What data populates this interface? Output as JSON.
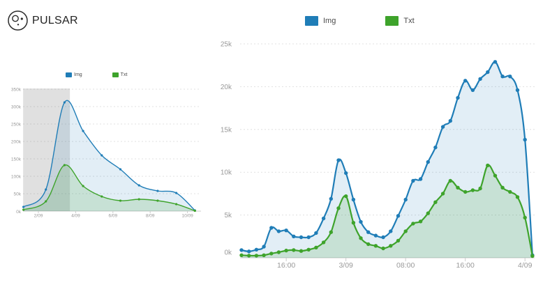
{
  "app": {
    "logo_text": "PULSAR"
  },
  "legend": {
    "img_label": "Img",
    "txt_label": "Txt"
  },
  "colors": {
    "img": "#1f7db7",
    "txt": "#3ea32b",
    "img_fill": "rgba(31,125,183,0.13)",
    "txt_fill": "rgba(62,163,43,0.16)",
    "selection": "rgba(140,140,140,0.27)",
    "grid": "#e0e0e0",
    "axis_line": "#cccccc",
    "axis_label": "#999999"
  },
  "chart_data": [
    {
      "id": "overview",
      "type": "area",
      "role": "range-overview-with-brush",
      "x_unit": "day of September",
      "x": [
        1.2,
        2.4,
        3.4,
        4.4,
        5.4,
        6.4,
        7.4,
        8.4,
        9.4,
        10.4
      ],
      "series": [
        {
          "name": "Img",
          "color": "#1f7db7",
          "fill": "rgba(31,125,183,0.13)",
          "values_k": [
            12,
            62,
            312,
            230,
            160,
            120,
            74,
            58,
            52,
            2
          ]
        },
        {
          "name": "Txt",
          "color": "#3ea32b",
          "fill": "rgba(62,163,43,0.16)",
          "values_k": [
            4,
            28,
            132,
            72,
            42,
            30,
            34,
            30,
            20,
            1
          ]
        }
      ],
      "x_ticks": [
        {
          "pos": 2,
          "label": "2/09"
        },
        {
          "pos": 4,
          "label": "4/09"
        },
        {
          "pos": 6,
          "label": "6/09"
        },
        {
          "pos": 8,
          "label": "8/09"
        },
        {
          "pos": 10,
          "label": "10/09"
        }
      ],
      "y_ticks": [
        {
          "pos": 0,
          "label": "0k"
        },
        {
          "pos": 50,
          "label": "50k"
        },
        {
          "pos": 100,
          "label": "100k"
        },
        {
          "pos": 150,
          "label": "150k"
        },
        {
          "pos": 200,
          "label": "200k"
        },
        {
          "pos": 250,
          "label": "250k"
        },
        {
          "pos": 300,
          "label": "300k"
        },
        {
          "pos": 350,
          "label": "350k"
        }
      ],
      "ylim_k": [
        0,
        350
      ],
      "grid": "dashed-horizontal",
      "selection": {
        "from": 1.18,
        "to": 3.69
      },
      "legend_position": "top-center"
    },
    {
      "id": "detail",
      "type": "area",
      "role": "zoomed-detail-of-selection",
      "x_unit": "hour index (≈hourly samples, 2/09 ~10:00 → 4/09 ~01:00)",
      "x_start": 0,
      "x_step": 1,
      "series": [
        {
          "name": "Img",
          "color": "#1f7db7",
          "fill": "rgba(31,125,183,0.13)",
          "values_k": [
            0.9,
            0.75,
            0.95,
            1.3,
            3.5,
            3.1,
            3.2,
            2.5,
            2.4,
            2.4,
            2.9,
            4.6,
            6.9,
            11.4,
            9.9,
            6.8,
            4.2,
            3.0,
            2.6,
            2.4,
            3.1,
            4.9,
            6.8,
            9.0,
            9.2,
            11.2,
            12.9,
            15.3,
            16.0,
            18.7,
            20.7,
            19.6,
            20.9,
            21.7,
            22.9,
            21.2,
            21.2,
            19.6,
            13.8,
            0.3
          ]
        },
        {
          "name": "Txt",
          "color": "#3ea32b",
          "fill": "rgba(62,163,43,0.16)",
          "values_k": [
            0.3,
            0.25,
            0.25,
            0.3,
            0.5,
            0.65,
            0.85,
            0.9,
            0.8,
            0.95,
            1.2,
            1.8,
            3.0,
            5.8,
            7.2,
            4.1,
            2.3,
            1.6,
            1.4,
            1.1,
            1.4,
            2.0,
            3.1,
            4.0,
            4.25,
            5.2,
            6.5,
            7.5,
            9.0,
            8.2,
            7.7,
            7.9,
            8.1,
            10.8,
            9.6,
            8.2,
            7.7,
            7.1,
            4.7,
            0.2
          ]
        }
      ],
      "x_ticks": [
        {
          "pos": 6,
          "label": "16:00"
        },
        {
          "pos": 14,
          "label": "3/09"
        },
        {
          "pos": 22,
          "label": "08:00"
        },
        {
          "pos": 30,
          "label": "16:00"
        },
        {
          "pos": 38,
          "label": "4/09"
        }
      ],
      "y_ticks": [
        {
          "pos": 0,
          "label": "0k"
        },
        {
          "pos": 5,
          "label": "5k"
        },
        {
          "pos": 10,
          "label": "10k"
        },
        {
          "pos": 15,
          "label": "15k"
        },
        {
          "pos": 20,
          "label": "20k"
        },
        {
          "pos": 25,
          "label": "25k"
        }
      ],
      "ylim_k": [
        0,
        25
      ],
      "grid": "dashed-horizontal",
      "legend_position": "top-center"
    }
  ]
}
